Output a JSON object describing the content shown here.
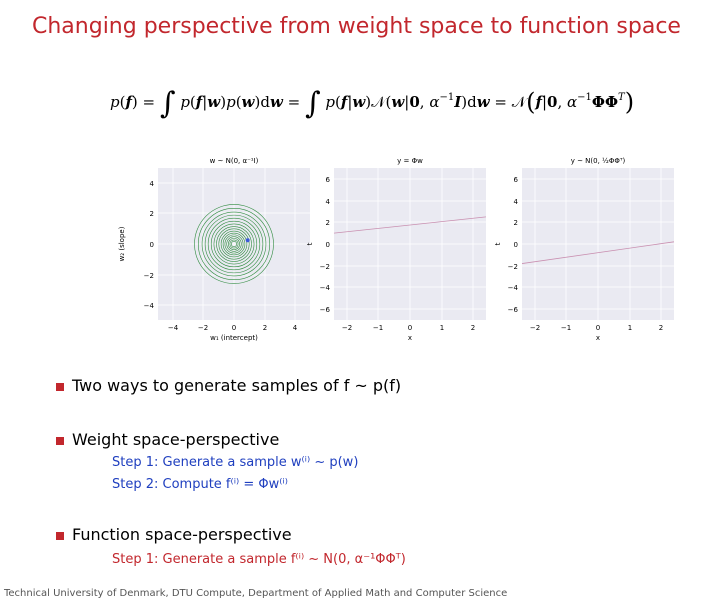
{
  "slide": {
    "title": "Changing perspective from weight space to function space",
    "footer": "Technical University of Denmark, DTU Compute, Department of Applied Math and Computer Science"
  },
  "equation": {
    "text": "p(f) = ∫ p(f|w)p(w)dw = ∫ p(f|w)N(w|0, α⁻¹I)dw = N(f|0, α⁻¹ΦΦᵀ)"
  },
  "plots": [
    {
      "title": "w ~ N(0, α⁻¹I)",
      "xlabel": "w₁ (intercept)",
      "ylabel": "w₂ (slope)",
      "xticks": [
        "−4",
        "−2",
        "0",
        "2",
        "4"
      ],
      "yticks": [
        "4",
        "2",
        "0",
        "−2",
        "−4"
      ]
    },
    {
      "title": "y = Φw",
      "xlabel": "x",
      "ylabel": "t",
      "xticks": [
        "−2",
        "−1",
        "0",
        "1",
        "2"
      ],
      "yticks": [
        "6",
        "4",
        "2",
        "0",
        "−2",
        "−4",
        "−6"
      ]
    },
    {
      "title": "y ~ N(0, ½ΦΦᵀ)",
      "xlabel": "x",
      "ylabel": "t",
      "xticks": [
        "−2",
        "−1",
        "0",
        "1",
        "2"
      ],
      "yticks": [
        "6",
        "4",
        "2",
        "0",
        "−2",
        "−4",
        "−6"
      ]
    }
  ],
  "chart_data": [
    {
      "type": "contour",
      "title": "w ~ N(0, α⁻¹I)",
      "xlabel": "w₁ (intercept)",
      "ylabel": "w₂ (slope)",
      "xlim": [
        -5,
        5
      ],
      "ylim": [
        -5,
        5
      ],
      "center": [
        0,
        0
      ],
      "sample_point": [
        0.9,
        0.25
      ]
    },
    {
      "type": "line",
      "title": "y = Φw",
      "xlabel": "x",
      "ylabel": "t",
      "xlim": [
        -2.2,
        2.2
      ],
      "ylim": [
        -7,
        7
      ],
      "series": [
        {
          "x": [
            -2.2,
            2.2
          ],
          "y": [
            1.0,
            2.5
          ]
        }
      ]
    },
    {
      "type": "line",
      "title": "y ~ N(0, ½ΦΦᵀ)",
      "xlabel": "x",
      "ylabel": "t",
      "xlim": [
        -2.2,
        2.2
      ],
      "ylim": [
        -7,
        7
      ],
      "series": [
        {
          "x": [
            -2.2,
            2.2
          ],
          "y": [
            -1.8,
            0.2
          ]
        }
      ]
    }
  ],
  "bullets": {
    "b1": {
      "text": "Two ways to generate samples of f ~ p(f)"
    },
    "b2": {
      "text": "Weight space-perspective",
      "step1": "Step 1:  Generate a sample w⁽ⁱ⁾ ~ p(w)",
      "step2": "Step 2:  Compute f⁽ⁱ⁾ = Φw⁽ⁱ⁾"
    },
    "b3": {
      "text": "Function space-perspective",
      "step1": "Step 1:  Generate a sample f⁽ⁱ⁾ ~ N(0, α⁻¹ΦΦᵀ)"
    }
  },
  "colors": {
    "title": "#c2272d",
    "bullet": "#c2272d",
    "step_blue": "#1f3fbf",
    "step_red": "#c2272d",
    "plot_bg": "#eaeaf2",
    "contour": "#2e8b3e",
    "line": "#c98fb0"
  }
}
